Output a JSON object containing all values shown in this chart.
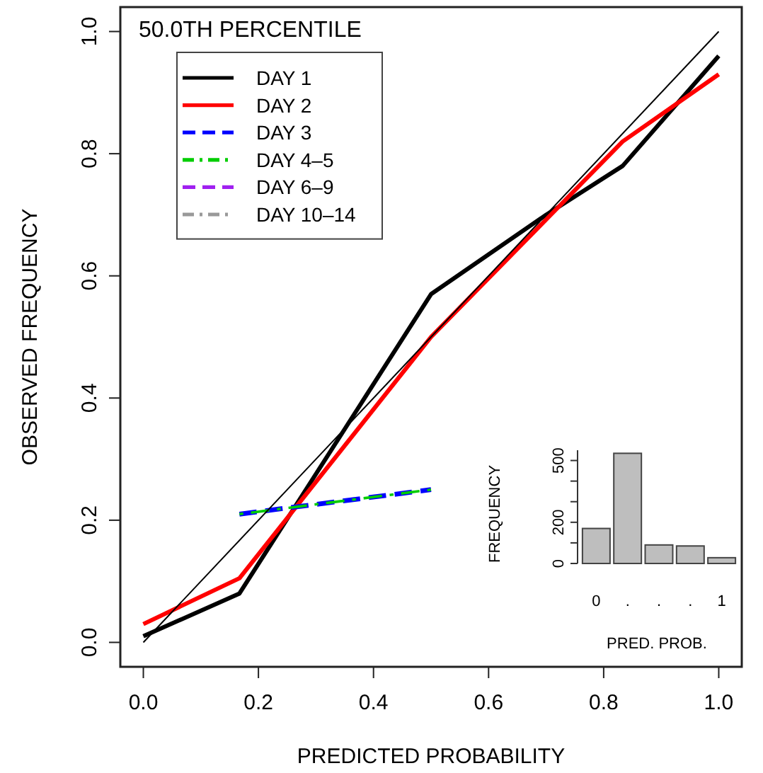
{
  "chart_data": [
    {
      "type": "line",
      "title": "50.0TH PERCENTILE",
      "xlabel": "PREDICTED PROBABILITY",
      "ylabel": "OBSERVED FREQUENCY",
      "xlim": [
        -0.04,
        1.04
      ],
      "ylim": [
        -0.04,
        1.04
      ],
      "xticks": [
        {
          "value": 0,
          "label": "0.0"
        },
        {
          "value": 0.2,
          "label": "0.2"
        },
        {
          "value": 0.4,
          "label": "0.4"
        },
        {
          "value": 0.6,
          "label": "0.6"
        },
        {
          "value": 0.8,
          "label": "0.8"
        },
        {
          "value": 1,
          "label": "1.0"
        }
      ],
      "yticks": [
        {
          "value": 0,
          "label": "0.0"
        },
        {
          "value": 0.2,
          "label": "0.2"
        },
        {
          "value": 0.4,
          "label": "0.4"
        },
        {
          "value": 0.6,
          "label": "0.6"
        },
        {
          "value": 0.8,
          "label": "0.8"
        },
        {
          "value": 1,
          "label": "1.0"
        }
      ],
      "legend": "top left",
      "grid": false,
      "marker": "none",
      "series": [
        {
          "name": "DAY 1",
          "color": "#000000",
          "line_style": "solid",
          "x": [
            0,
            0.167,
            0.5,
            0.7,
            0.833,
            1
          ],
          "values": [
            0.01,
            0.08,
            0.57,
            0.7,
            0.78,
            0.96
          ]
        },
        {
          "name": "DAY 2",
          "color": "#ff0000",
          "line_style": "solid",
          "x": [
            0,
            0.167,
            0.5,
            0.833,
            1
          ],
          "values": [
            0.03,
            0.105,
            0.5,
            0.82,
            0.93
          ]
        },
        {
          "name": "DAY 3",
          "color": "#0000ff",
          "line_style": "dashed",
          "x": [
            0.167,
            0.5
          ],
          "values": [
            0.21,
            0.25
          ]
        },
        {
          "name": "DAY 4–5",
          "color": "#00cd00",
          "line_style": "dashdot",
          "x": [
            0.167,
            0.5
          ],
          "values": [
            0.21,
            0.25
          ]
        },
        {
          "name": "DAY 6–9",
          "color": "#a020f0",
          "line_style": "dashed"
        },
        {
          "name": "DAY 10–14",
          "color": "#999999",
          "line_style": "dashdot"
        },
        {
          "color": "#000000",
          "line_style": "solid",
          "x": [
            0,
            1
          ],
          "values": [
            0,
            1
          ]
        }
      ]
    },
    {
      "type": "bar",
      "xlabel": "PRED. PROB.",
      "ylabel": "FREQUENCY",
      "categories": [
        "0",
        ".",
        ".",
        ".",
        "1"
      ],
      "values": [
        170,
        535,
        90,
        85,
        28
      ],
      "color": "#bebebe",
      "ylim": [
        0,
        550
      ],
      "yticks": [
        0,
        {
          "value": 100,
          "label": null
        },
        200,
        {
          "value": 300,
          "label": null
        },
        {
          "value": 400,
          "label": null
        },
        500
      ]
    }
  ]
}
